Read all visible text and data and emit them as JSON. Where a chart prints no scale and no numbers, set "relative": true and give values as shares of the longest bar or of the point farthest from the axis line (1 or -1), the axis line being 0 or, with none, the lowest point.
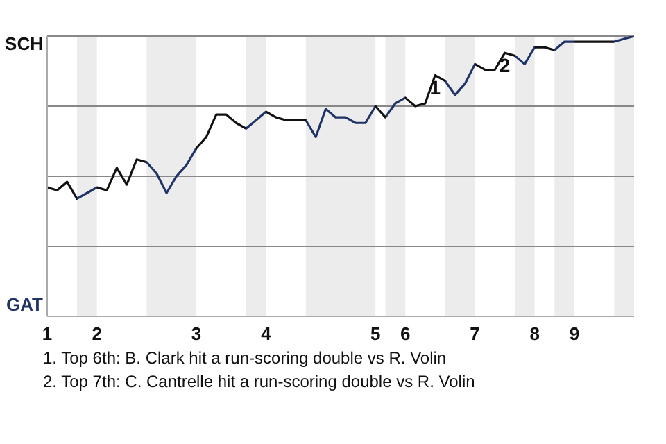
{
  "chart_data": {
    "type": "line",
    "relative": true,
    "categories": [
      "1",
      null,
      null,
      null,
      null,
      "2",
      null,
      null,
      null,
      null,
      null,
      null,
      null,
      null,
      null,
      "3",
      null,
      null,
      null,
      null,
      null,
      null,
      "4",
      null,
      null,
      null,
      null,
      null,
      null,
      null,
      null,
      null,
      null,
      "5",
      null,
      null,
      "6",
      null,
      null,
      null,
      null,
      null,
      null,
      "7",
      null,
      null,
      null,
      null,
      null,
      "8",
      null,
      null,
      null,
      "9",
      null,
      null,
      null,
      null,
      null,
      null
    ],
    "series": [
      {
        "color": "#111111",
        "values": [
          0.46,
          0.45,
          0.48,
          0.42,
          0.44,
          0.46,
          0.45,
          0.53,
          0.47,
          0.56,
          0.55,
          0.51,
          0.44,
          0.5,
          0.54,
          0.6,
          0.64,
          0.72,
          0.72,
          0.69,
          0.67,
          0.7,
          0.73,
          0.71,
          0.7,
          0.7,
          0.7,
          0.64,
          0.74,
          0.71,
          0.71,
          0.69,
          0.69,
          0.75,
          0.71,
          0.76,
          0.78,
          0.75,
          0.76,
          0.86,
          0.84,
          0.79,
          0.83,
          0.9,
          0.88,
          0.88,
          0.94,
          0.93,
          0.9,
          0.96,
          0.96,
          0.95,
          0.98,
          0.98,
          0.98,
          0.98,
          0.98,
          0.98,
          0.99,
          1
        ],
        "colors": [
          "#111111",
          "#111111",
          "#111111",
          "#1f3366",
          "#1f3366",
          "#111111",
          "#111111",
          "#111111",
          "#111111",
          "#111111",
          "#1f3366",
          "#1f3366",
          "#1f3366",
          "#1f3366",
          "#1f3366",
          "#111111",
          "#111111",
          "#111111",
          "#111111",
          "#111111",
          "#1f3366",
          "#1f3366",
          "#111111",
          "#111111",
          "#111111",
          "#111111",
          "#1f3366",
          "#1f3366",
          "#1f3366",
          "#1f3366",
          "#1f3366",
          "#1f3366",
          "#1f3366",
          "#111111",
          "#1f3366",
          "#1f3366",
          "#111111",
          "#111111",
          "#111111",
          "#111111",
          "#1f3366",
          "#1f3366",
          "#1f3366",
          "#111111",
          "#111111",
          "#111111",
          "#111111",
          "#1f3366",
          "#1f3366",
          "#111111",
          "#111111",
          "#1f3366",
          "#1f3366",
          "#111111",
          "#111111",
          "#111111",
          "#111111",
          "#1f3366",
          "#1f3366",
          "#1f3366"
        ]
      }
    ],
    "grid": "y",
    "legend": false,
    "marker": "none",
    "line_style": "solid",
    "annotations": [
      "SCH",
      "GAT",
      {
        "text": "1",
        "y": 0.86
      },
      {
        "text": "2",
        "y": 0.94
      },
      "1. Top 6th: B. Clark hit a run-scoring double vs R. Volin",
      "2. Top 7th: C. Cantrelle hit a run-scoring double vs R. Volin"
    ]
  }
}
